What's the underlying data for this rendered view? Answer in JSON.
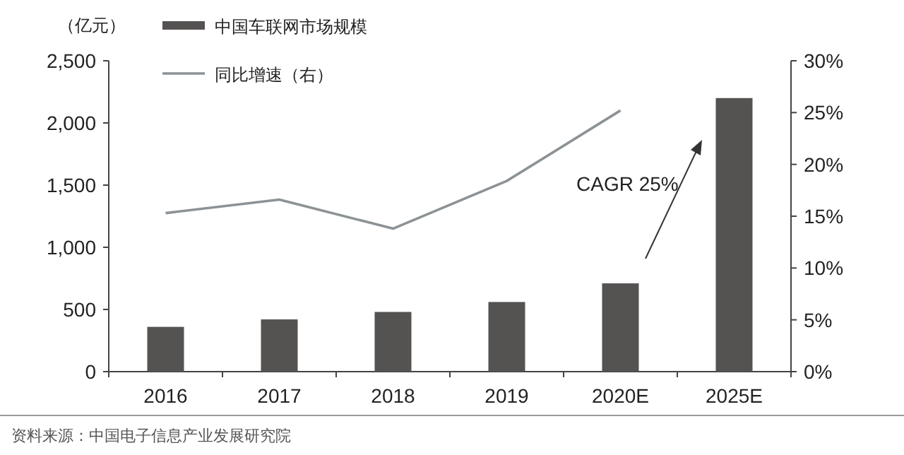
{
  "chart_data": {
    "type": "bar",
    "categories": [
      "2016",
      "2017",
      "2018",
      "2019",
      "2020E",
      "2025E"
    ],
    "series": [
      {
        "name": "中国车联网市场规模",
        "color": "#555252",
        "values": [
          360,
          420,
          480,
          560,
          710,
          2200
        ]
      },
      {
        "name": "同比增速（右）",
        "type": "line",
        "axis": "y2",
        "color": "#8c9295",
        "values": [
          15.3,
          16.6,
          13.8,
          18.4,
          25.2,
          null
        ]
      }
    ],
    "ylabel": "（亿元）",
    "ylim": [
      0,
      2500
    ],
    "yticks": [
      0,
      500,
      {
        "value": 1000,
        "label": "1,000"
      },
      {
        "value": 1500,
        "label": "1,500"
      },
      {
        "value": 2000,
        "label": "2,000"
      },
      {
        "value": 2500,
        "label": "2,500"
      }
    ],
    "y2lim": [
      0,
      30
    ],
    "y2ticks": [
      {
        "value": 0,
        "label": "0%"
      },
      {
        "value": 5,
        "label": "5%"
      },
      {
        "value": 10,
        "label": "10%"
      },
      {
        "value": 15,
        "label": "15%"
      },
      {
        "value": 20,
        "label": "20%"
      },
      {
        "value": 25,
        "label": "25%"
      },
      {
        "value": 30,
        "label": "30%"
      }
    ],
    "legend": "top left",
    "grid": false,
    "marker": "none",
    "annotations": [
      "CAGR 25%",
      "资料来源：中国电子信息产业发展研究院"
    ]
  }
}
